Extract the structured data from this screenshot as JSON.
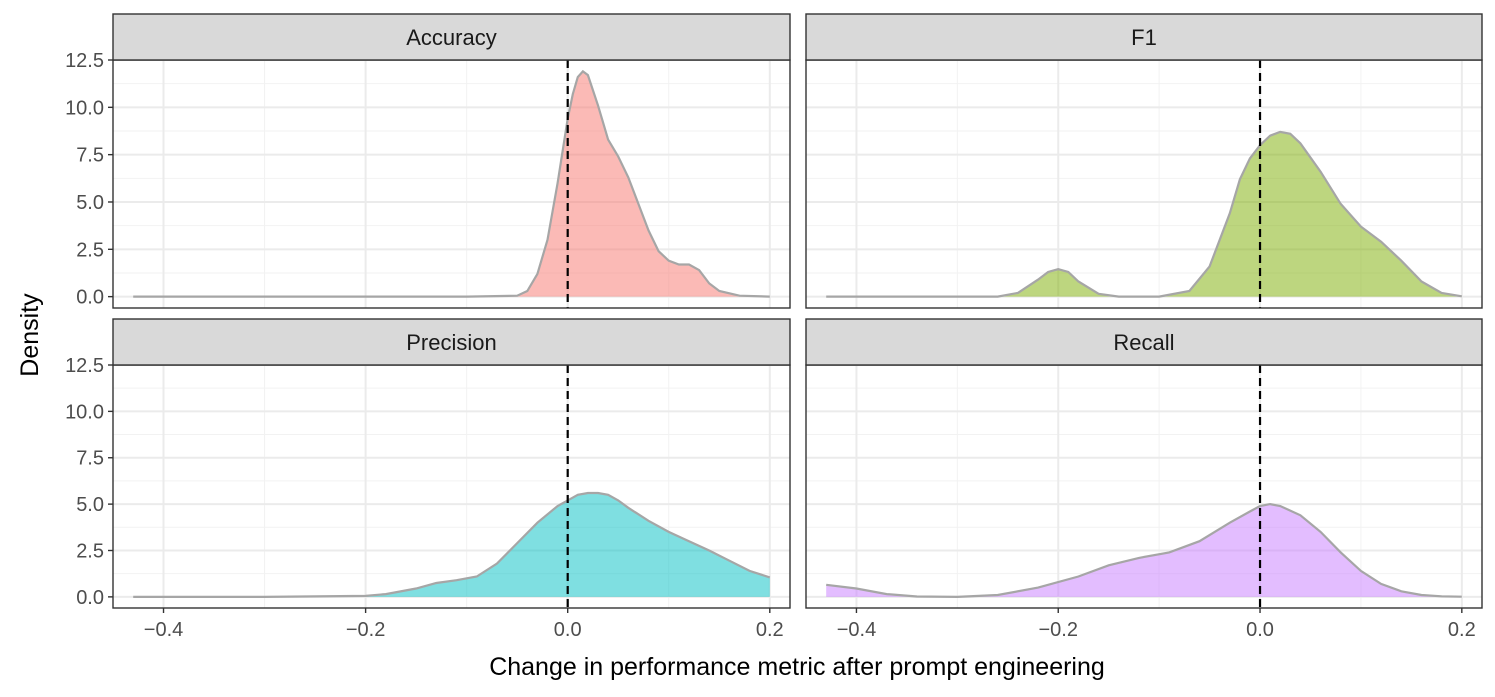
{
  "chart_data": {
    "type": "area",
    "xlabel": "Change in performance metric after prompt engineering",
    "ylabel": "Density",
    "xlim": [
      -0.45,
      0.22
    ],
    "ylim": [
      -0.6,
      12.5
    ],
    "x_ticks": [
      -0.4,
      -0.2,
      0.0,
      0.2
    ],
    "x_tick_labels": [
      "−0.4",
      "−0.2",
      "0.0",
      "0.2"
    ],
    "y_ticks": [
      0,
      2.5,
      5,
      7.5,
      10,
      12.5
    ],
    "y_tick_labels": [
      "0.0",
      "2.5",
      "5.0",
      "7.5",
      "10.0",
      "12.5"
    ],
    "reference_line_x": 0.0,
    "grid": true,
    "legend": "none",
    "facets": [
      {
        "name": "Accuracy",
        "color": "#F8766D",
        "x": [
          -0.43,
          -0.1,
          -0.05,
          -0.04,
          -0.03,
          -0.02,
          -0.01,
          0.0,
          0.005,
          0.01,
          0.015,
          0.02,
          0.03,
          0.04,
          0.05,
          0.06,
          0.07,
          0.08,
          0.09,
          0.1,
          0.11,
          0.12,
          0.13,
          0.14,
          0.15,
          0.17,
          0.2
        ],
        "y": [
          0,
          0,
          0.05,
          0.3,
          1.2,
          3.0,
          6.0,
          9.4,
          10.7,
          11.6,
          11.9,
          11.7,
          10.1,
          8.3,
          7.4,
          6.3,
          4.9,
          3.5,
          2.4,
          1.9,
          1.7,
          1.7,
          1.4,
          0.7,
          0.3,
          0.05,
          0
        ]
      },
      {
        "name": "F1",
        "color": "#7CAE00",
        "x": [
          -0.43,
          -0.26,
          -0.24,
          -0.22,
          -0.21,
          -0.2,
          -0.19,
          -0.18,
          -0.16,
          -0.14,
          -0.1,
          -0.07,
          -0.05,
          -0.03,
          -0.02,
          -0.01,
          0.0,
          0.01,
          0.02,
          0.03,
          0.04,
          0.06,
          0.08,
          0.1,
          0.12,
          0.14,
          0.16,
          0.18,
          0.2
        ],
        "y": [
          0,
          0,
          0.2,
          0.9,
          1.3,
          1.45,
          1.3,
          0.8,
          0.15,
          0.0,
          0.0,
          0.3,
          1.6,
          4.4,
          6.2,
          7.3,
          8.0,
          8.5,
          8.7,
          8.6,
          8.1,
          6.6,
          4.9,
          3.7,
          2.9,
          1.9,
          0.8,
          0.2,
          0.02
        ]
      },
      {
        "name": "Precision",
        "color": "#00BFC4",
        "x": [
          -0.43,
          -0.3,
          -0.2,
          -0.18,
          -0.15,
          -0.13,
          -0.11,
          -0.09,
          -0.07,
          -0.05,
          -0.03,
          -0.01,
          0.0,
          0.01,
          0.02,
          0.03,
          0.04,
          0.05,
          0.06,
          0.08,
          0.1,
          0.12,
          0.14,
          0.16,
          0.18,
          0.2
        ],
        "y": [
          0,
          0,
          0.05,
          0.15,
          0.45,
          0.75,
          0.9,
          1.1,
          1.8,
          2.9,
          4.0,
          4.9,
          5.2,
          5.5,
          5.6,
          5.6,
          5.5,
          5.2,
          4.8,
          4.1,
          3.5,
          3.0,
          2.5,
          1.95,
          1.4,
          1.05
        ]
      },
      {
        "name": "Recall",
        "color": "#C77CFF",
        "x": [
          -0.43,
          -0.4,
          -0.37,
          -0.34,
          -0.3,
          -0.26,
          -0.22,
          -0.18,
          -0.15,
          -0.12,
          -0.09,
          -0.06,
          -0.03,
          -0.01,
          0.0,
          0.01,
          0.02,
          0.04,
          0.06,
          0.08,
          0.1,
          0.12,
          0.14,
          0.16,
          0.18,
          0.2
        ],
        "y": [
          0.65,
          0.45,
          0.15,
          0.02,
          0.0,
          0.1,
          0.5,
          1.1,
          1.7,
          2.1,
          2.4,
          3.0,
          4.0,
          4.6,
          4.9,
          5.0,
          4.9,
          4.4,
          3.5,
          2.4,
          1.4,
          0.7,
          0.3,
          0.1,
          0.03,
          0.01
        ]
      }
    ]
  }
}
